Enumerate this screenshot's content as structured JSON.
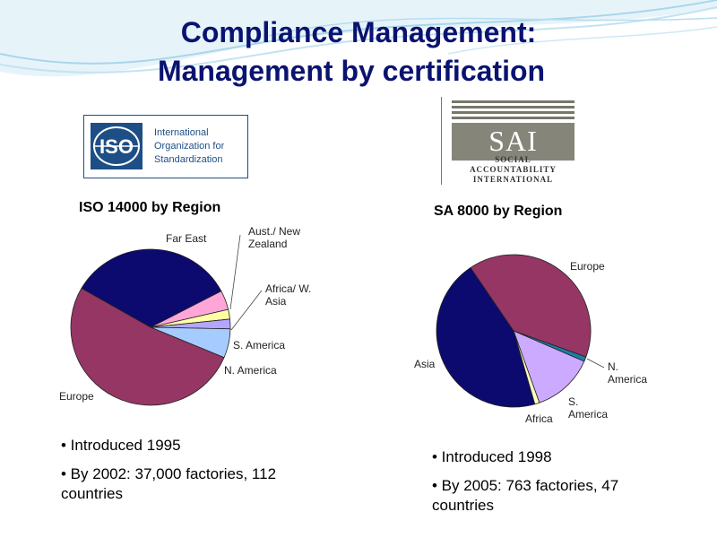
{
  "slide": {
    "title_line1": "Compliance Management:",
    "title_line2": "Management by certification",
    "colors": {
      "title": "#0a1370",
      "wave": "#a9d6ea"
    }
  },
  "iso_logo": {
    "mark": "ISO",
    "lines": [
      "International",
      "Organization for",
      "Standardization"
    ],
    "color": "#1d4f86"
  },
  "sai_logo": {
    "mark": "SAI",
    "lines": [
      "SOCIAL",
      "ACCOUNTABILITY",
      "INTERNATIONAL"
    ],
    "color": "#85857a"
  },
  "chart_data": [
    {
      "type": "pie",
      "title": "ISO 14000 by Region",
      "categories": [
        "Far East",
        "Aust./ New Zealand",
        "Africa/ W. Asia",
        "S. America",
        "N. America",
        "Europe"
      ],
      "values": [
        34,
        4,
        2,
        2,
        6,
        52
      ],
      "colors": [
        "#0c0a6e",
        "#ffa6d9",
        "#ffffa6",
        "#b3a6ff",
        "#a6ccff",
        "#963664"
      ],
      "label_text": [
        "Far East",
        "Aust./ New\nZealand",
        "Africa/ W.\nAsia",
        "S. America",
        "N. America",
        "Europe"
      ]
    },
    {
      "type": "pie",
      "title": "SA 8000 by Region",
      "categories": [
        "Europe",
        "N. America",
        "S. America",
        "Africa",
        "Asia"
      ],
      "values": [
        40,
        1,
        13,
        1,
        45
      ],
      "colors": [
        "#963664",
        "#1a7fa6",
        "#ccaaff",
        "#ffffc0",
        "#0c0a6e"
      ],
      "label_text": [
        "Europe",
        "N.\nAmerica",
        "S.\nAmerica",
        "Africa",
        "Asia"
      ]
    }
  ],
  "iso_bullets": [
    "• Introduced 1995",
    "• By 2002: 37,000 factories, 112 countries"
  ],
  "sa_bullets": [
    "• Introduced 1998",
    "• By 2005: 763 factories, 47 countries"
  ]
}
